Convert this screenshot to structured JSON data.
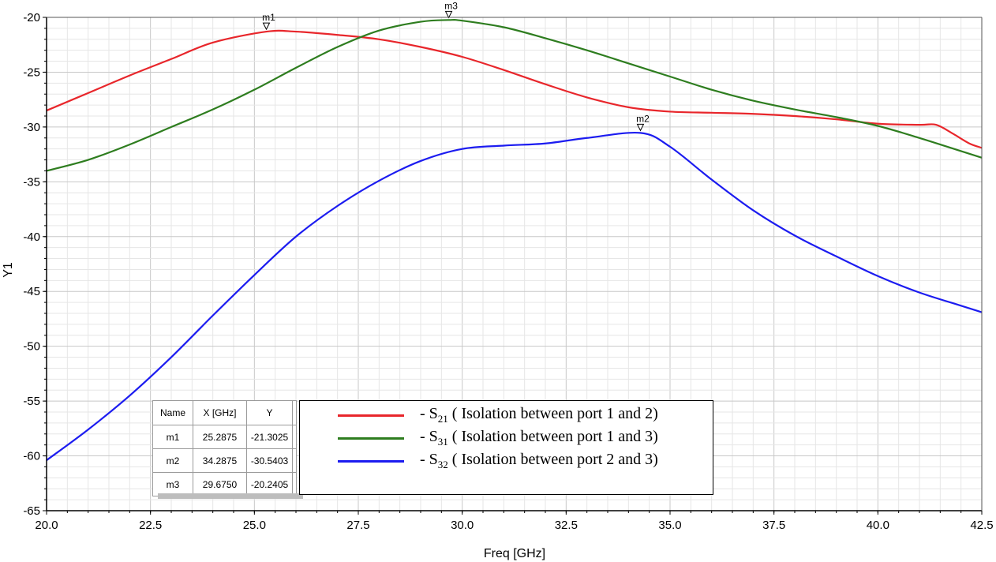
{
  "chart_data": {
    "type": "line",
    "xlabel": "Freq [GHz]",
    "ylabel": "Y1",
    "xlim": [
      20.0,
      42.5
    ],
    "ylim": [
      -65,
      -20
    ],
    "xticks": [
      "20.0",
      "22.5",
      "25.0",
      "27.5",
      "30.0",
      "32.5",
      "35.0",
      "37.5",
      "40.0",
      "42.5"
    ],
    "yticks": [
      "-20",
      "-25",
      "-30",
      "-35",
      "-40",
      "-45",
      "-50",
      "-55",
      "-60",
      "-65"
    ],
    "grid": true,
    "legend_position": "bottom-center",
    "series": [
      {
        "name": "S21 ( Isolation between port 1 and 2)",
        "color": "#e8262b",
        "x": [
          20.0,
          21.0,
          22.0,
          23.0,
          24.0,
          25.2875,
          26.0,
          27.0,
          28.0,
          29.0,
          30.0,
          31.0,
          32.0,
          33.0,
          34.0,
          35.0,
          36.0,
          37.0,
          38.0,
          39.0,
          40.0,
          41.0,
          41.4,
          41.8,
          42.2,
          42.5
        ],
        "y": [
          -28.5,
          -26.9,
          -25.3,
          -23.8,
          -22.3,
          -21.3,
          -21.3,
          -21.6,
          -22.0,
          -22.7,
          -23.6,
          -24.8,
          -26.1,
          -27.3,
          -28.2,
          -28.6,
          -28.7,
          -28.8,
          -29.0,
          -29.3,
          -29.7,
          -29.8,
          -29.8,
          -30.6,
          -31.5,
          -31.9
        ]
      },
      {
        "name": "S31 ( Isolation between port 1 and 3)",
        "color": "#2e7d1f",
        "x": [
          20.0,
          21.0,
          22.0,
          23.0,
          24.0,
          25.0,
          26.0,
          27.0,
          28.0,
          29.0,
          29.675,
          30.0,
          31.0,
          32.0,
          33.0,
          34.0,
          35.0,
          36.0,
          37.0,
          38.0,
          39.0,
          40.0,
          41.0,
          42.0,
          42.5
        ],
        "y": [
          -34.0,
          -33.0,
          -31.6,
          -30.0,
          -28.4,
          -26.6,
          -24.6,
          -22.7,
          -21.2,
          -20.4,
          -20.24,
          -20.3,
          -20.9,
          -21.9,
          -23.0,
          -24.2,
          -25.4,
          -26.6,
          -27.6,
          -28.4,
          -29.1,
          -29.9,
          -31.0,
          -32.2,
          -32.8
        ]
      },
      {
        "name": "S32 ( Isolation between port 2 and 3)",
        "color": "#1c1cf0",
        "x": [
          20.0,
          21.0,
          22.0,
          23.0,
          24.0,
          25.0,
          26.0,
          27.0,
          28.0,
          29.0,
          30.0,
          31.0,
          32.0,
          33.0,
          34.2875,
          35.0,
          36.0,
          37.0,
          38.0,
          39.0,
          40.0,
          41.0,
          42.0,
          42.5
        ],
        "y": [
          -60.4,
          -57.6,
          -54.5,
          -51.0,
          -47.2,
          -43.5,
          -40.0,
          -37.2,
          -34.9,
          -33.1,
          -32.0,
          -31.7,
          -31.5,
          -31.0,
          -30.54,
          -31.8,
          -34.8,
          -37.6,
          -39.9,
          -41.8,
          -43.6,
          -45.1,
          -46.3,
          -46.9
        ]
      }
    ],
    "markers": [
      {
        "name": "m1",
        "x": 25.2875,
        "y": -21.3025
      },
      {
        "name": "m2",
        "x": 34.2875,
        "y": -30.5403
      },
      {
        "name": "m3",
        "x": 29.675,
        "y": -20.2405
      }
    ]
  },
  "marker_table": {
    "headers": [
      "Name",
      "X [GHz]",
      "Y"
    ],
    "rows": [
      [
        "m1",
        "25.2875",
        "-21.3025"
      ],
      [
        "m2",
        "34.2875",
        "-30.5403"
      ],
      [
        "m3",
        "29.6750",
        "-20.2405"
      ]
    ]
  },
  "legend": [
    {
      "prefix": "- S",
      "sub": "21",
      "text": "( Isolation between port 1 and 2)",
      "color": "#e8262b"
    },
    {
      "prefix": "- S",
      "sub": "31",
      "text": "( Isolation between port 1 and 3)",
      "color": "#2e7d1f"
    },
    {
      "prefix": "- S",
      "sub": "32",
      "text": "( Isolation between port 2 and 3)",
      "color": "#1c1cf0"
    }
  ]
}
